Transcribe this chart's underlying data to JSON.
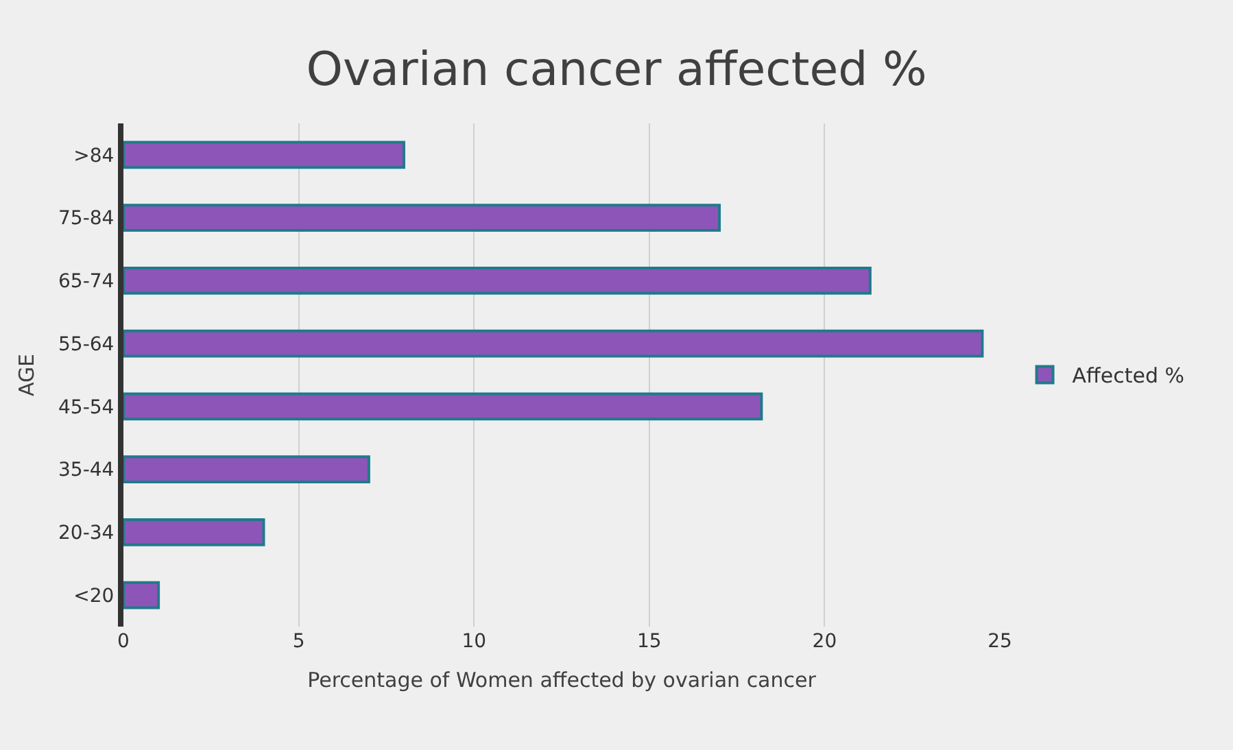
{
  "chart_data": {
    "type": "bar",
    "orientation": "horizontal",
    "title": "Ovarian cancer affected %",
    "xlabel": "Percentage of Women affected by ovarian cancer",
    "ylabel": "AGE",
    "categories": [
      ">84",
      "75-84",
      "65-74",
      "55-64",
      "45-54",
      "35-44",
      "20-34",
      "<20"
    ],
    "series": [
      {
        "name": "Affected %",
        "color": "#8e55b8",
        "values": [
          8,
          17,
          21.3,
          24.5,
          18.2,
          7,
          4,
          1
        ]
      }
    ],
    "xlim": [
      0,
      25
    ],
    "xticks": [
      0,
      5,
      10,
      15,
      20,
      25
    ],
    "grid": "x",
    "legend": "right"
  }
}
